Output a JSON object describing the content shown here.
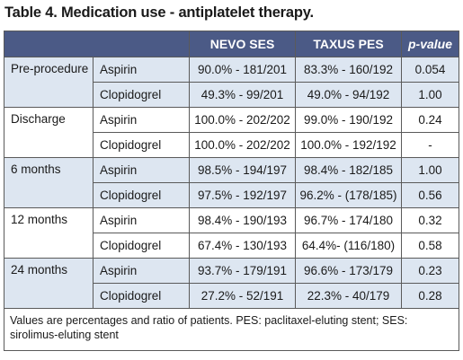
{
  "title": "Table 4. Medication use - antiplatelet therapy.",
  "columns": [
    "NEVO SES",
    "TAXUS PES",
    "p-value"
  ],
  "groups": [
    {
      "label": "Pre-procedure",
      "shade": true,
      "rows": [
        {
          "drug": "Aspirin",
          "nevo": "90.0% - 181/201",
          "taxus": "83.3% - 160/192",
          "p": "0.054"
        },
        {
          "drug": "Clopidogrel",
          "nevo": "49.3% - 99/201",
          "taxus": "49.0% - 94/192",
          "p": "1.00"
        }
      ]
    },
    {
      "label": "Discharge",
      "shade": false,
      "rows": [
        {
          "drug": "Aspirin",
          "nevo": "100.0% - 202/202",
          "taxus": "99.0% - 190/192",
          "p": "0.24"
        },
        {
          "drug": "Clopidogrel",
          "nevo": "100.0% - 202/202",
          "taxus": "100.0% - 192/192",
          "p": "-"
        }
      ]
    },
    {
      "label": "6 months",
      "shade": true,
      "rows": [
        {
          "drug": "Aspirin",
          "nevo": "98.5% - 194/197",
          "taxus": "98.4% - 182/185",
          "p": "1.00"
        },
        {
          "drug": "Clopidogrel",
          "nevo": "97.5% - 192/197",
          "taxus": "96.2% - (178/185)",
          "p": "0.56"
        }
      ]
    },
    {
      "label": "12 months",
      "shade": false,
      "rows": [
        {
          "drug": "Aspirin",
          "nevo": "98.4% - 190/193",
          "taxus": "96.7% - 174/180",
          "p": "0.32"
        },
        {
          "drug": "Clopidogrel",
          "nevo": "67.4% - 130/193",
          "taxus": "64.4%- (116/180)",
          "p": "0.58"
        }
      ]
    },
    {
      "label": "24 months",
      "shade": true,
      "rows": [
        {
          "drug": "Aspirin",
          "nevo": "93.7% - 179/191",
          "taxus": "96.6% - 173/179",
          "p": "0.23"
        },
        {
          "drug": "Clopidogrel",
          "nevo": "27.2% - 52/191",
          "taxus": "22.3% - 40/179",
          "p": "0.28"
        }
      ]
    }
  ],
  "footnote": "Values are percentages and ratio of patients. PES: paclitaxel-eluting stent; SES: sirolimus-eluting stent",
  "colors": {
    "header_bg": "#4b5a86",
    "shade_bg": "#dde6f1",
    "border": "#5a5a5a"
  }
}
